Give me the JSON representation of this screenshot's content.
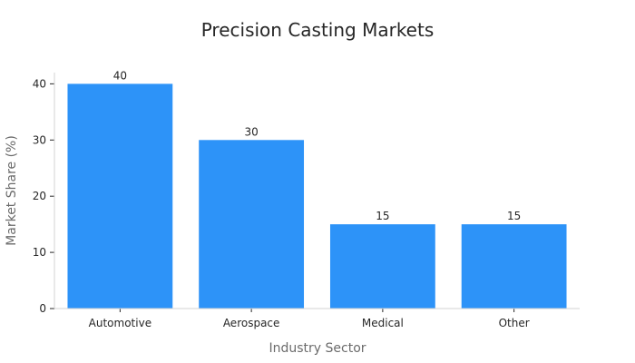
{
  "chart_data": {
    "type": "bar",
    "title": "Precision Casting Markets",
    "xlabel": "Industry Sector",
    "ylabel": "Market Share (%)",
    "categories": [
      "Automotive",
      "Aerospace",
      "Medical",
      "Other"
    ],
    "values": [
      40,
      30,
      15,
      15
    ],
    "data_labels": [
      "40",
      "30",
      "15",
      "15"
    ],
    "ylim": [
      0,
      42
    ],
    "yticks": [
      0,
      10,
      20,
      30,
      40
    ],
    "ytick_labels": [
      "0",
      "10",
      "20",
      "30",
      "40"
    ],
    "grid": false,
    "legend": "none",
    "bar_color": "#2d93f8",
    "axis_color": "#d3d3d3",
    "title_color": "#262626",
    "axis_label_color": "#6b6b6b"
  }
}
